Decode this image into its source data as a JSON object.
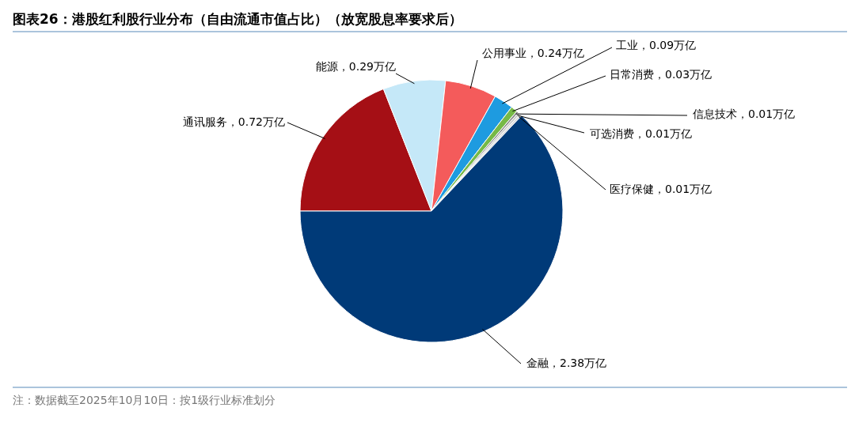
{
  "chart_data": {
    "type": "pie",
    "title": "图表26：港股红利股行业分布（自由流通市值占比）（放宽股息率要求后）",
    "categories": [
      "通讯服务",
      "能源",
      "公用事业",
      "工业",
      "日常消费",
      "信息技术",
      "可选消费",
      "医疗保健",
      "金融"
    ],
    "values": [
      0.72,
      0.29,
      0.24,
      0.09,
      0.03,
      0.01,
      0.01,
      0.01,
      2.38
    ],
    "value_labels": [
      "0.72万亿",
      "0.29万亿",
      "0.24万亿",
      "0.09万亿",
      "0.03万亿",
      "0.01万亿",
      "0.01万亿",
      "0.01万亿",
      "2.38万亿"
    ],
    "colors": [
      "#a50f15",
      "#c5e8f8",
      "#f45b5b",
      "#1e9be0",
      "#76b947",
      "#8c8c8c",
      "#c8c8c8",
      "#dcdcdc",
      "#003a78"
    ],
    "legend": false,
    "annotations": [
      "注：数据截至2025年10月10日：按1级行业标准划分"
    ]
  }
}
